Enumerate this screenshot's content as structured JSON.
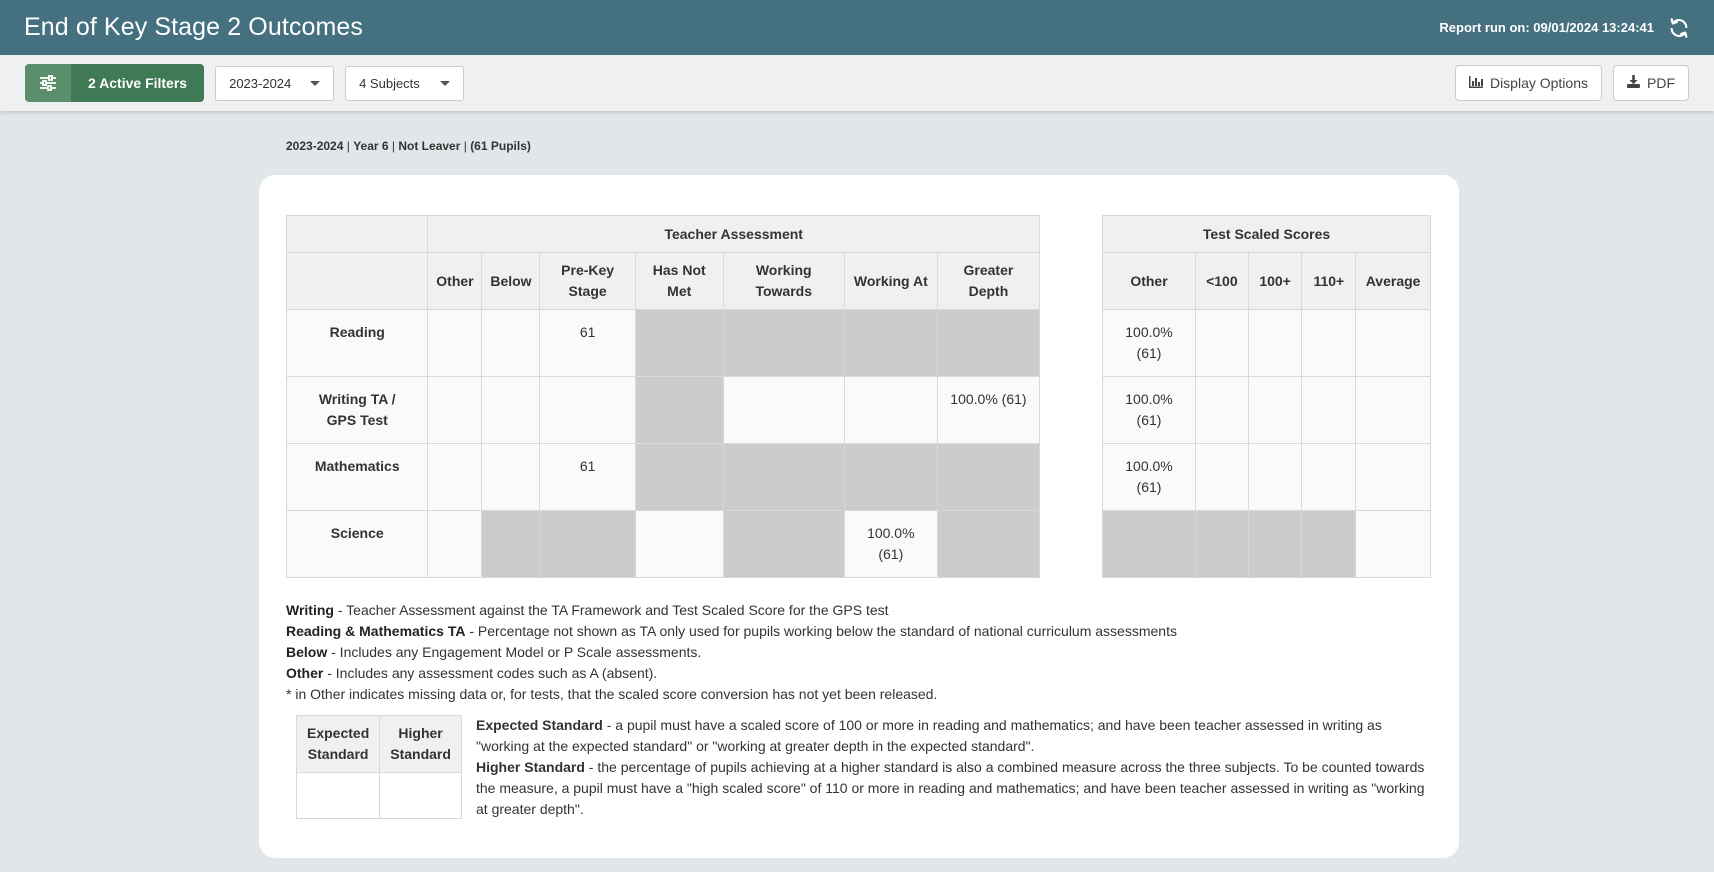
{
  "header": {
    "title": "End of Key Stage 2 Outcomes",
    "report_run": "Report run on: 09/01/2024 13:24:41"
  },
  "toolbar": {
    "filters_label": "2 Active Filters",
    "year_select": "2023-2024",
    "subjects_select": "4 Subjects",
    "display_options_label": "Display Options",
    "pdf_label": "PDF"
  },
  "crumb": {
    "year": "2023-2024",
    "group": "Year 6",
    "leaver": "Not Leaver",
    "pupils": "(61 Pupils)"
  },
  "teacher_assessment": {
    "heading": "Teacher Assessment",
    "columns": [
      "Other",
      "Below",
      "Pre-Key Stage",
      "Has Not Met",
      "Working Towards",
      "Working At",
      "Greater Depth"
    ],
    "rows": [
      {
        "label": "Reading",
        "cells": [
          "",
          "",
          "61",
          "",
          "",
          "",
          ""
        ]
      },
      {
        "label": "Writing TA / GPS Test",
        "cells": [
          "",
          "",
          "",
          "",
          "",
          "",
          "100.0% (61)"
        ]
      },
      {
        "label": "Mathematics",
        "cells": [
          "",
          "",
          "61",
          "",
          "",
          "",
          ""
        ]
      },
      {
        "label": "Science",
        "cells": [
          "",
          "",
          "",
          "",
          "",
          "100.0% (61)",
          ""
        ]
      }
    ]
  },
  "test_scaled_scores": {
    "heading": "Test Scaled Scores",
    "columns": [
      "Other",
      "<100",
      "100+",
      "110+",
      "Average"
    ],
    "rows": [
      {
        "cells": [
          "100.0% (61)",
          "",
          "",
          "",
          ""
        ]
      },
      {
        "cells": [
          "100.0% (61)",
          "",
          "",
          "",
          ""
        ]
      },
      {
        "cells": [
          "100.0% (61)",
          "",
          "",
          "",
          ""
        ]
      },
      {
        "cells": [
          "",
          "",
          "",
          "",
          ""
        ]
      }
    ]
  },
  "notes": [
    {
      "term": "Writing",
      "text": " - Teacher Assessment against the TA Framework and Test Scaled Score for the GPS test"
    },
    {
      "term": "Reading & Mathematics TA",
      "text": " - Percentage not shown as TA only used for pupils working below the standard of national curriculum assessments"
    },
    {
      "term": "Below",
      "text": " - Includes any Engagement Model or P Scale assessments."
    },
    {
      "term": "Other",
      "text": " - Includes any assessment codes such as A (absent)."
    },
    {
      "term": "",
      "text": "* in Other indicates missing data or, for tests, that the scaled score conversion has not yet been released."
    }
  ],
  "standards": {
    "expected_header": "Expected Standard",
    "higher_header": "Higher Standard",
    "expected_value": "",
    "higher_value": "",
    "expected_term": "Expected Standard",
    "expected_text": " - a pupil must have a scaled score of 100 or more in reading and mathematics; and have been teacher assessed in writing as \"working at the expected standard\" or \"working at greater depth in the expected standard\".",
    "higher_term": "Higher Standard",
    "higher_text": " - the percentage of pupils achieving at a higher standard is also a combined measure across the three subjects. To be counted towards the measure, a pupil must have a \"high scaled score\" of 110 or more in reading and mathematics; and have been teacher assessed in writing as \"working at greater depth\"."
  },
  "colors": {
    "header_bg": "#44707f",
    "filter_btn": "#3f7a55",
    "shaded_cell": "#cccccc",
    "page_bg": "#e1e6e9"
  },
  "icons": [
    "sliders-icon",
    "caret-down-icon",
    "refresh-icon",
    "bar-chart-icon",
    "download-icon"
  ]
}
